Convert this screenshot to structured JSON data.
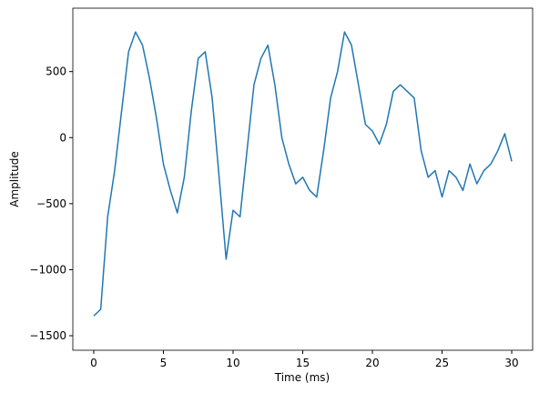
{
  "chart_data": {
    "type": "line",
    "xlabel": "Time (ms)",
    "ylabel": "Amplitude",
    "x": [
      0,
      0.5,
      1.0,
      1.5,
      2.0,
      2.5,
      3.0,
      3.5,
      4.0,
      4.5,
      5.0,
      5.5,
      6.0,
      6.5,
      7.0,
      7.5,
      8.0,
      8.5,
      9.0,
      9.5,
      10.0,
      10.5,
      11.0,
      11.5,
      12.0,
      12.5,
      13.0,
      13.5,
      14.0,
      14.5,
      15.0,
      15.5,
      16.0,
      16.5,
      17.0,
      17.5,
      18.0,
      18.5,
      19.0,
      19.5,
      20.0,
      20.5,
      21.0,
      21.5,
      22.0,
      22.5,
      23.0,
      23.5,
      24.0,
      24.5,
      25.0,
      25.5,
      26.0,
      26.5,
      27.0,
      27.5,
      28.0,
      28.5,
      29.0,
      29.5,
      30.0
    ],
    "series": [
      {
        "color": "#1f77b4",
        "values": [
          -1350,
          -1300,
          -600,
          -250,
          200,
          650,
          800,
          700,
          450,
          150,
          -200,
          -400,
          -570,
          -300,
          200,
          600,
          650,
          300,
          -300,
          -920,
          -550,
          -600,
          -100,
          400,
          600,
          700,
          400,
          0,
          -200,
          -350,
          -300,
          -400,
          -450,
          -100,
          300,
          500,
          800,
          700,
          400,
          100,
          50,
          -50,
          100,
          350,
          400,
          350,
          300,
          -100,
          -300,
          -250,
          -450,
          -250,
          -300,
          -400,
          -200,
          -350,
          -250,
          -200,
          -100,
          30,
          -180
        ]
      }
    ],
    "xlim": [
      -1.5,
      31.5
    ],
    "ylim": [
      -1610,
      980
    ],
    "xticks": [
      0,
      5,
      10,
      15,
      20,
      25,
      30
    ],
    "yticks": [
      {
        "value": -1500,
        "label": "−1500"
      },
      {
        "value": -1000,
        "label": "−1000"
      },
      {
        "value": -500,
        "label": "−500"
      },
      0,
      500
    ],
    "grid": false
  }
}
